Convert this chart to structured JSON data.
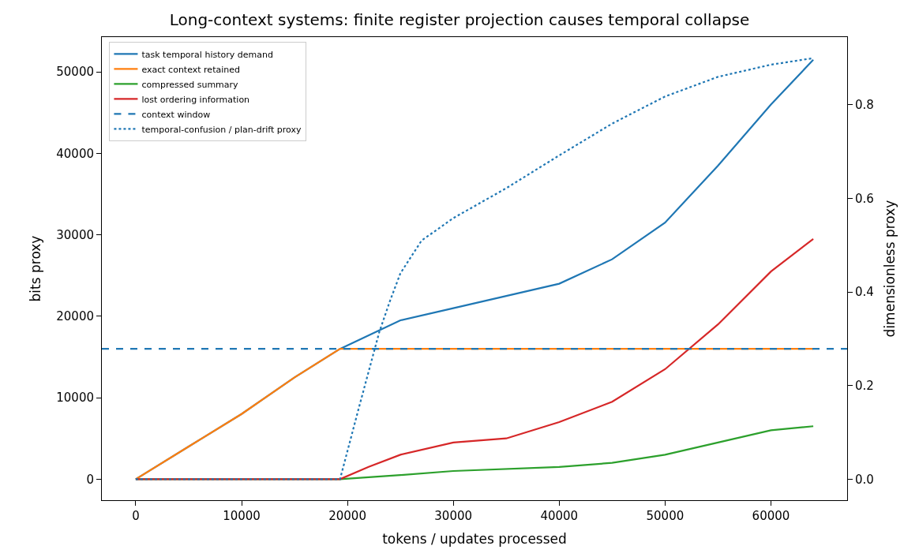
{
  "chart_data": {
    "type": "line",
    "title": "Long-context systems: finite register projection causes temporal collapse",
    "xlabel": "tokens / updates processed",
    "ylabel": "bits proxy",
    "y2label": "dimensionless proxy",
    "xlim": [
      -3200,
      67200
    ],
    "xticks": [
      0,
      10000,
      20000,
      30000,
      40000,
      50000,
      60000
    ],
    "ylim": [
      -2585,
      54285
    ],
    "yticks": [
      0,
      10000,
      20000,
      30000,
      40000,
      50000
    ],
    "y2lim": [
      -0.045,
      0.945
    ],
    "y2ticks": [
      {
        "value": 0,
        "label": "0.0"
      },
      {
        "value": 0.2,
        "label": "0.2"
      },
      {
        "value": 0.4,
        "label": "0.4"
      },
      {
        "value": 0.6,
        "label": "0.6"
      },
      {
        "value": 0.8,
        "label": "0.8"
      }
    ],
    "legend": "top left",
    "series": [
      {
        "name": "task temporal history demand",
        "color": "#1f77b4",
        "x": [
          0,
          5000,
          10000,
          15000,
          19300,
          25000,
          30000,
          35000,
          40000,
          45000,
          50000,
          55000,
          60000,
          64000
        ],
        "values": [
          0,
          4000,
          8000,
          12500,
          16000,
          19500,
          21000,
          22500,
          24000,
          27000,
          31500,
          38500,
          46000,
          51500
        ]
      },
      {
        "name": "exact context retained",
        "color": "#ff7f0e",
        "x": [
          0,
          5000,
          10000,
          15000,
          19300,
          25000,
          64000
        ],
        "values": [
          0,
          4000,
          8000,
          12500,
          16000,
          16000,
          16000
        ]
      },
      {
        "name": "compressed summary",
        "color": "#2ca02c",
        "x": [
          0,
          19300,
          25000,
          30000,
          40000,
          45000,
          50000,
          55000,
          60000,
          64000
        ],
        "values": [
          0,
          0,
          500,
          1000,
          1500,
          2000,
          3000,
          4500,
          6000,
          6500
        ]
      },
      {
        "name": "lost ordering information",
        "color": "#d62728",
        "x": [
          0,
          19300,
          22000,
          25000,
          30000,
          35000,
          40000,
          45000,
          50000,
          55000,
          60000,
          64000
        ],
        "values": [
          0,
          0,
          1500,
          3000,
          4500,
          5000,
          7000,
          9500,
          13500,
          19000,
          25500,
          29500
        ]
      },
      {
        "name": "temporal-confusion / plan-drift proxy",
        "color": "#1f77b4",
        "axis": "y2",
        "line_style": "dotted",
        "x": [
          0,
          19300,
          21000,
          22000,
          23000,
          24000,
          25000,
          27000,
          30000,
          35000,
          40000,
          45000,
          50000,
          55000,
          60000,
          64000
        ],
        "values": [
          0,
          0,
          0.146,
          0.23,
          0.314,
          0.38,
          0.44,
          0.51,
          0.558,
          0.622,
          0.692,
          0.76,
          0.818,
          0.86,
          0.886,
          0.9
        ]
      }
    ],
    "ref_lines": [
      {
        "axis": "y",
        "value": 16000,
        "label": "context window",
        "color": "#1f77b4",
        "line_style": "dashed"
      }
    ]
  }
}
